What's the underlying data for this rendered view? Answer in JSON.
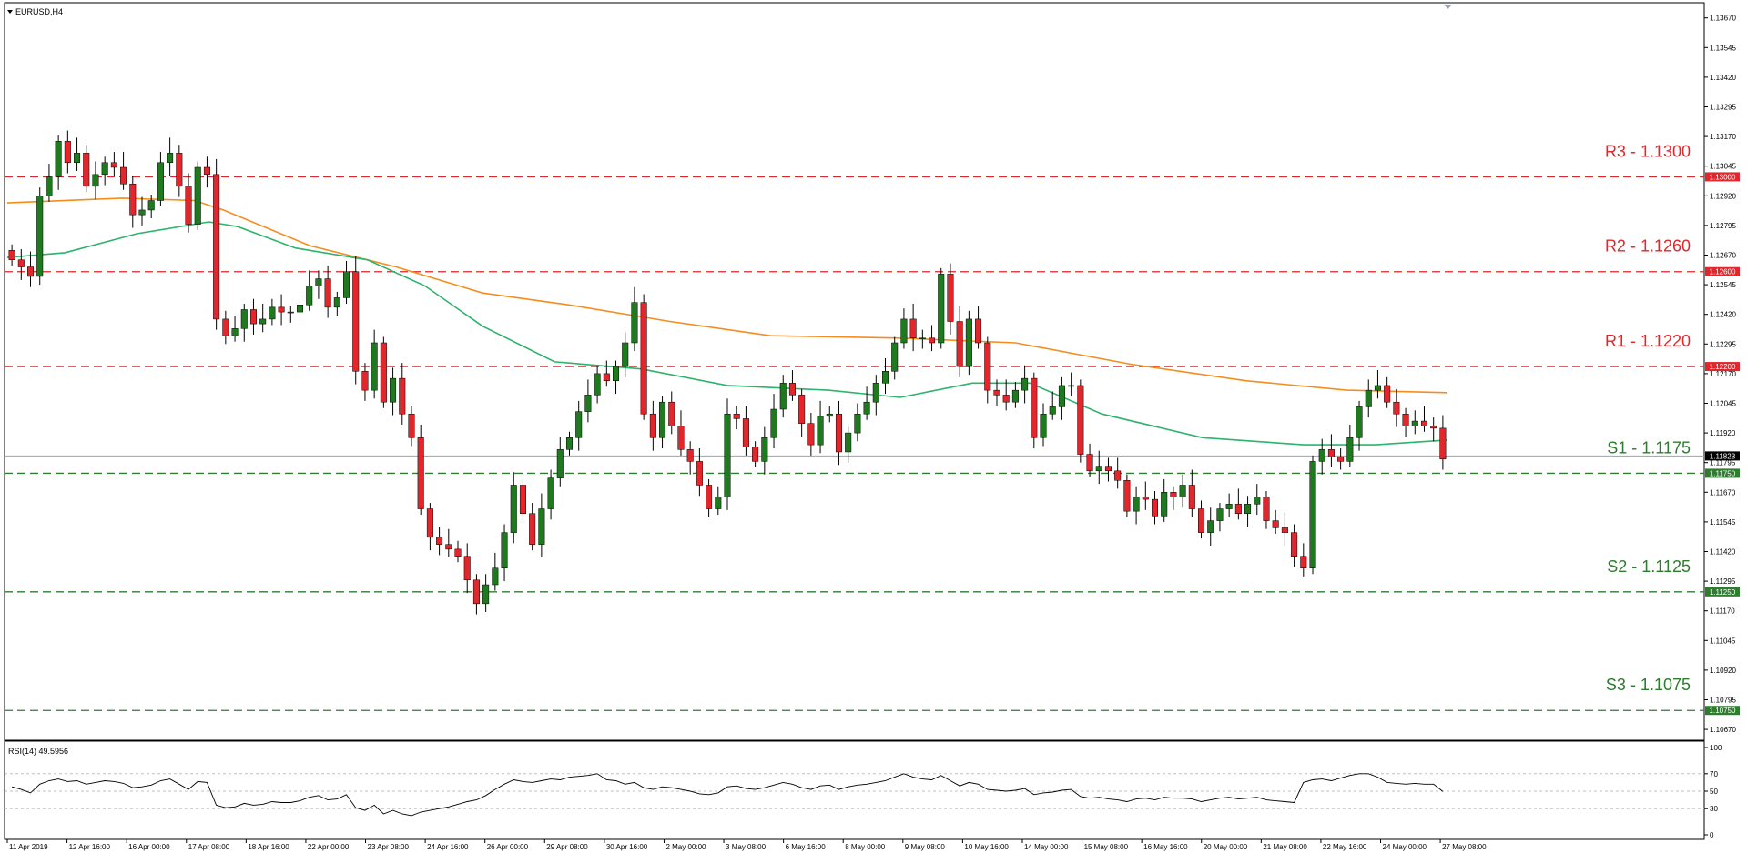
{
  "symbol_title": "EURUSD,H4",
  "rsi_title": "RSI(14) 49.5956",
  "colors": {
    "background": "#ffffff",
    "bull": "#1f7a1f",
    "bear": "#e3262b",
    "wick": "#000000",
    "ma_slow": "#f58d1e",
    "ma_fast": "#2db36b",
    "resistance": "#e3262b",
    "support": "#2e7d2e",
    "current_price_line": "#8ea4c0",
    "current_price_box": "#000000",
    "grid_rsi": "#c0c0c0"
  },
  "chart_data": {
    "type": "candlestick",
    "title": "EURUSD,H4",
    "ylim": [
      1.10632,
      1.13688
    ],
    "price_ticks": [
      "1.13670",
      "1.13545",
      "1.13420",
      "1.13295",
      "1.13170",
      "1.13045",
      "1.12920",
      "1.12795",
      "1.12670",
      "1.12545",
      "1.12420",
      "1.12295",
      "1.12170",
      "1.12045",
      "1.11920",
      "1.11795",
      "1.11670",
      "1.11545",
      "1.11420",
      "1.11295",
      "1.11170",
      "1.11045",
      "1.10920",
      "1.10795",
      "1.10670"
    ],
    "time_labels": [
      "11 Apr 2019",
      "12 Apr 16:00",
      "16 Apr 00:00",
      "17 Apr 08:00",
      "18 Apr 16:00",
      "22 Apr 00:00",
      "23 Apr 08:00",
      "24 Apr 16:00",
      "26 Apr 00:00",
      "29 Apr 08:00",
      "30 Apr 16:00",
      "2 May 00:00",
      "3 May 08:00",
      "6 May 16:00",
      "8 May 00:00",
      "9 May 08:00",
      "10 May 16:00",
      "14 May 00:00",
      "15 May 08:00",
      "16 May 16:00",
      "20 May 00:00",
      "21 May 08:00",
      "22 May 16:00",
      "24 May 00:00",
      "27 May 08:00"
    ],
    "current_price": 1.11823,
    "current_price_label": "1.11823",
    "levels": [
      {
        "name": "R3",
        "value": 1.13,
        "box": "1.13000",
        "label": "R3 - 1.1300",
        "kind": "resistance"
      },
      {
        "name": "R2",
        "value": 1.126,
        "box": "1.12600",
        "label": "R2 - 1.1260",
        "kind": "resistance"
      },
      {
        "name": "R1",
        "value": 1.122,
        "box": "1.12200",
        "label": "R1 - 1.1220",
        "kind": "resistance"
      },
      {
        "name": "S1",
        "value": 1.1175,
        "box": "1.11750",
        "label": "S1 - 1.1175",
        "kind": "support"
      },
      {
        "name": "S2",
        "value": 1.1125,
        "box": "1.11250",
        "label": "S2 - 1.1125",
        "kind": "support"
      },
      {
        "name": "S3",
        "value": 1.1075,
        "box": "1.10750",
        "label": "S3 - 1.1075",
        "kind": "support"
      }
    ],
    "close_series": [
      1.1265,
      1.1262,
      1.1258,
      1.1292,
      1.13,
      1.1315,
      1.1306,
      1.131,
      1.1296,
      1.1301,
      1.1306,
      1.1304,
      1.1297,
      1.1284,
      1.1286,
      1.129,
      1.1306,
      1.131,
      1.1296,
      1.128,
      1.1304,
      1.1301,
      1.124,
      1.1233,
      1.1236,
      1.1244,
      1.1238,
      1.124,
      1.1245,
      1.1243,
      1.1243,
      1.1246,
      1.1254,
      1.1257,
      1.1245,
      1.1249,
      1.126,
      1.1218,
      1.121,
      1.123,
      1.1205,
      1.1215,
      1.12,
      1.119,
      1.116,
      1.1148,
      1.1145,
      1.1143,
      1.114,
      1.113,
      1.112,
      1.1128,
      1.1135,
      1.115,
      1.117,
      1.1158,
      1.1145,
      1.116,
      1.1173,
      1.1185,
      1.119,
      1.1201,
      1.1208,
      1.1217,
      1.1214,
      1.122,
      1.123,
      1.1247,
      1.12,
      1.119,
      1.1205,
      1.1195,
      1.1185,
      1.118,
      1.117,
      1.116,
      1.1165,
      1.12,
      1.1198,
      1.1186,
      1.118,
      1.119,
      1.1202,
      1.1213,
      1.1208,
      1.1196,
      1.1187,
      1.1199,
      1.12,
      1.1184,
      1.1192,
      1.12,
      1.1205,
      1.1213,
      1.1218,
      1.123,
      1.124,
      1.1232,
      1.1232,
      1.123,
      1.1259,
      1.1239,
      1.122,
      1.124,
      1.123,
      1.121,
      1.1208,
      1.1205,
      1.121,
      1.1215,
      1.119,
      1.12,
      1.1203,
      1.1212,
      1.1212,
      1.1183,
      1.1176,
      1.1178,
      1.1176,
      1.1172,
      1.1159,
      1.1165,
      1.1164,
      1.1157,
      1.1167,
      1.1165,
      1.117,
      1.116,
      1.115,
      1.1155,
      1.116,
      1.1162,
      1.1158,
      1.1162,
      1.1165,
      1.1155,
      1.1152,
      1.115,
      1.114,
      1.1135,
      1.118,
      1.1185,
      1.1182,
      1.118,
      1.119,
      1.1203,
      1.121,
      1.1212,
      1.1205,
      1.12,
      1.1195,
      1.1197,
      1.1195,
      1.1194,
      1.1181
    ],
    "ma_slow": [
      {
        "x": 0.0,
        "y": 1.1289
      },
      {
        "x": 0.08,
        "y": 1.1291
      },
      {
        "x": 0.13,
        "y": 1.129
      },
      {
        "x": 0.15,
        "y": 1.1286
      },
      {
        "x": 0.21,
        "y": 1.1271
      },
      {
        "x": 0.27,
        "y": 1.1262
      },
      {
        "x": 0.33,
        "y": 1.1251
      },
      {
        "x": 0.39,
        "y": 1.1246
      },
      {
        "x": 0.46,
        "y": 1.1239
      },
      {
        "x": 0.53,
        "y": 1.1233
      },
      {
        "x": 0.62,
        "y": 1.1232
      },
      {
        "x": 0.7,
        "y": 1.123
      },
      {
        "x": 0.78,
        "y": 1.1221
      },
      {
        "x": 0.86,
        "y": 1.1214
      },
      {
        "x": 0.93,
        "y": 1.121
      },
      {
        "x": 1.0,
        "y": 1.1209
      }
    ],
    "ma_fast": [
      {
        "x": 0.0,
        "y": 1.1266
      },
      {
        "x": 0.04,
        "y": 1.1268
      },
      {
        "x": 0.09,
        "y": 1.1276
      },
      {
        "x": 0.14,
        "y": 1.1281
      },
      {
        "x": 0.16,
        "y": 1.1279
      },
      {
        "x": 0.2,
        "y": 1.127
      },
      {
        "x": 0.25,
        "y": 1.1265
      },
      {
        "x": 0.29,
        "y": 1.1254
      },
      {
        "x": 0.33,
        "y": 1.1237
      },
      {
        "x": 0.38,
        "y": 1.1222
      },
      {
        "x": 0.44,
        "y": 1.1219
      },
      {
        "x": 0.5,
        "y": 1.1212
      },
      {
        "x": 0.57,
        "y": 1.121
      },
      {
        "x": 0.62,
        "y": 1.1207
      },
      {
        "x": 0.67,
        "y": 1.1213
      },
      {
        "x": 0.71,
        "y": 1.1213
      },
      {
        "x": 0.76,
        "y": 1.12
      },
      {
        "x": 0.83,
        "y": 1.119
      },
      {
        "x": 0.9,
        "y": 1.1187
      },
      {
        "x": 0.95,
        "y": 1.1187
      },
      {
        "x": 1.0,
        "y": 1.1189
      }
    ],
    "rsi": {
      "value": 49.5956,
      "ylim": [
        0,
        100
      ],
      "ticks": [
        "100",
        "70",
        "50",
        "30",
        "0"
      ],
      "levels": [
        70,
        50,
        30
      ],
      "series": [
        55,
        52,
        48,
        58,
        62,
        64,
        61,
        62,
        58,
        60,
        62,
        61,
        59,
        54,
        55,
        57,
        62,
        64,
        58,
        52,
        61,
        60,
        34,
        31,
        32,
        36,
        34,
        35,
        38,
        37,
        37,
        39,
        43,
        45,
        40,
        41,
        46,
        31,
        28,
        34,
        24,
        28,
        24,
        22,
        26,
        28,
        30,
        32,
        35,
        38,
        40,
        45,
        52,
        58,
        63,
        61,
        60,
        62,
        64,
        63,
        66,
        67,
        68,
        70,
        63,
        62,
        58,
        60,
        54,
        52,
        55,
        54,
        52,
        50,
        47,
        46,
        48,
        55,
        56,
        53,
        52,
        54,
        57,
        60,
        58,
        54,
        52,
        56,
        57,
        52,
        55,
        57,
        58,
        60,
        62,
        66,
        70,
        66,
        64,
        63,
        68,
        62,
        56,
        60,
        58,
        52,
        51,
        50,
        51,
        53,
        46,
        48,
        49,
        51,
        52,
        44,
        42,
        43,
        41,
        40,
        38,
        41,
        42,
        40,
        43,
        42,
        42,
        41,
        38,
        40,
        42,
        43,
        41,
        42,
        43,
        40,
        39,
        38,
        37,
        60,
        63,
        64,
        62,
        65,
        68,
        70,
        70,
        66,
        60,
        59,
        58,
        59,
        58,
        58,
        49.6
      ]
    }
  }
}
